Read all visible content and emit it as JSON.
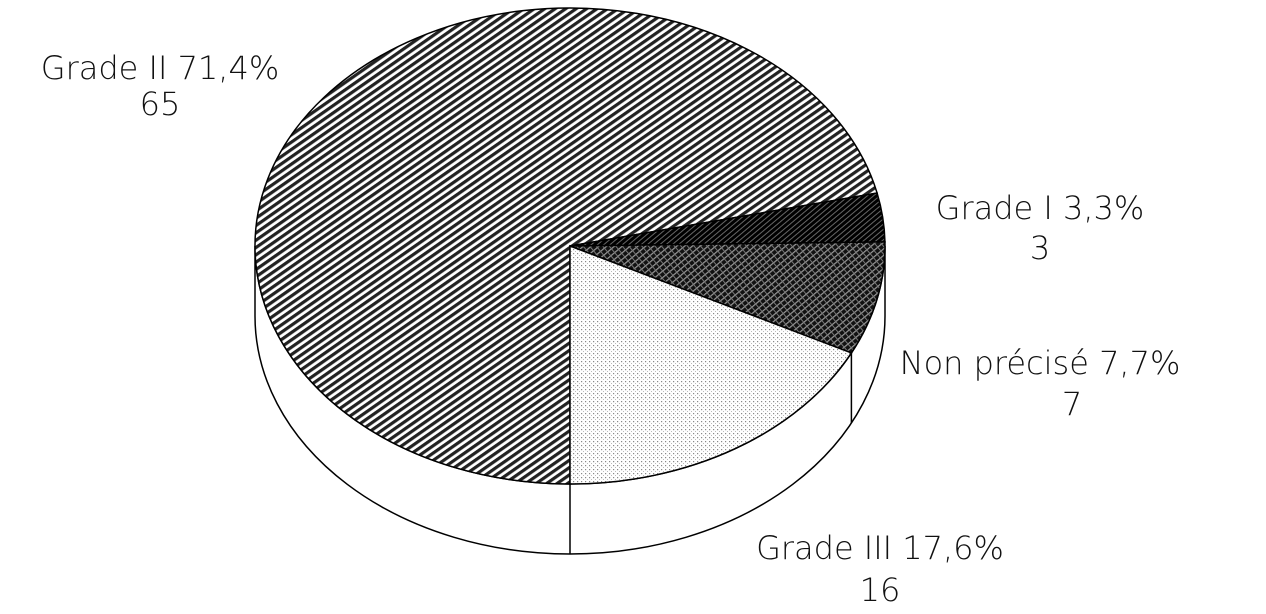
{
  "chart_data": {
    "type": "pie3d",
    "categories": [
      "Grade II",
      "Grade I",
      "Non précisé",
      "Grade III"
    ],
    "values": [
      65,
      3,
      7,
      16
    ],
    "percents": [
      71.4,
      3.3,
      7.7,
      17.6
    ],
    "percent_labels": [
      "71,4%",
      "3,3%",
      "7,7%",
      "17,6%"
    ]
  }
}
